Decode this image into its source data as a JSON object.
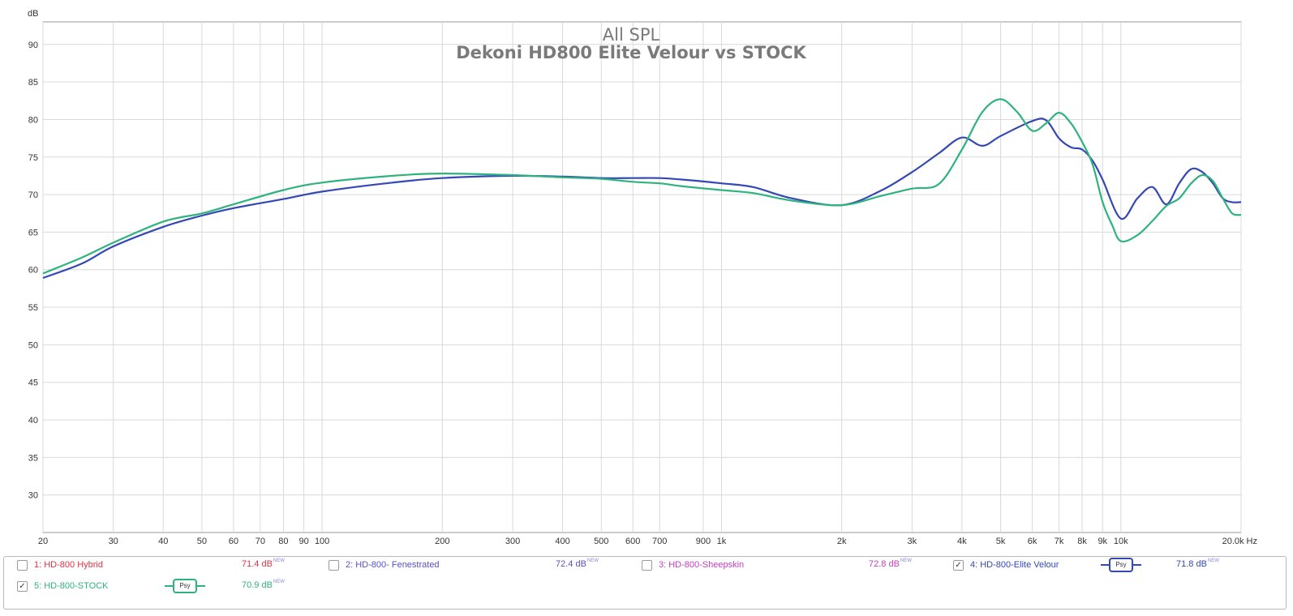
{
  "chart_data": {
    "type": "line",
    "title": "All SPL",
    "subtitle": "Dekoni HD800 Elite Velour vs STOCK",
    "ylabel": "dB",
    "xlabel_unit": "Hz",
    "x_scale": "log",
    "xlim": [
      20,
      20000
    ],
    "ylim": [
      25,
      93
    ],
    "grid": true,
    "x_ticks": [
      {
        "v": 20,
        "t": "20"
      },
      {
        "v": 30,
        "t": "30"
      },
      {
        "v": 40,
        "t": "40"
      },
      {
        "v": 50,
        "t": "50"
      },
      {
        "v": 60,
        "t": "60"
      },
      {
        "v": 70,
        "t": "70"
      },
      {
        "v": 80,
        "t": "80"
      },
      {
        "v": 90,
        "t": "90"
      },
      {
        "v": 100,
        "t": "100"
      },
      {
        "v": 200,
        "t": "200"
      },
      {
        "v": 300,
        "t": "300"
      },
      {
        "v": 400,
        "t": "400"
      },
      {
        "v": 500,
        "t": "500"
      },
      {
        "v": 600,
        "t": "600"
      },
      {
        "v": 700,
        "t": "700"
      },
      {
        "v": 900,
        "t": "900"
      },
      {
        "v": 1000,
        "t": "1k"
      },
      {
        "v": 2000,
        "t": "2k"
      },
      {
        "v": 3000,
        "t": "3k"
      },
      {
        "v": 4000,
        "t": "4k"
      },
      {
        "v": 5000,
        "t": "5k"
      },
      {
        "v": 6000,
        "t": "6k"
      },
      {
        "v": 7000,
        "t": "7k"
      },
      {
        "v": 8000,
        "t": "8k"
      },
      {
        "v": 9000,
        "t": "9k"
      },
      {
        "v": 10000,
        "t": "10k"
      },
      {
        "v": 20000,
        "t": "20.0k Hz"
      }
    ],
    "y_ticks": [
      30,
      35,
      40,
      45,
      50,
      55,
      60,
      65,
      70,
      75,
      80,
      85,
      90
    ],
    "series": [
      {
        "name": "4: HD-800-Elite Velour",
        "color": "#3348b5",
        "x": [
          20,
          25,
          30,
          40,
          50,
          60,
          80,
          100,
          150,
          200,
          300,
          400,
          500,
          600,
          700,
          800,
          1000,
          1200,
          1500,
          2000,
          2500,
          3000,
          3500,
          4000,
          4500,
          5000,
          6000,
          6500,
          7000,
          7500,
          8000,
          8500,
          9000,
          10000,
          11000,
          12000,
          13000,
          14000,
          15000,
          16000,
          17000,
          18000,
          19000,
          20000
        ],
        "y": [
          58.9,
          60.8,
          63.1,
          65.7,
          67.2,
          68.2,
          69.4,
          70.4,
          71.6,
          72.2,
          72.5,
          72.4,
          72.2,
          72.2,
          72.2,
          72.0,
          71.5,
          71.0,
          69.5,
          68.6,
          70.5,
          73.0,
          75.5,
          77.6,
          76.5,
          77.8,
          79.8,
          79.9,
          77.5,
          76.3,
          76.0,
          74.5,
          72.0,
          66.8,
          69.5,
          71.0,
          68.7,
          71.5,
          73.4,
          73.0,
          71.5,
          69.5,
          69.0,
          69.0
        ]
      },
      {
        "name": "5: HD-800-STOCK",
        "color": "#2fb37e",
        "x": [
          20,
          25,
          30,
          40,
          50,
          60,
          80,
          100,
          150,
          200,
          300,
          400,
          500,
          600,
          700,
          800,
          1000,
          1200,
          1500,
          2000,
          2500,
          3000,
          3500,
          4000,
          4500,
          5000,
          5500,
          6000,
          6500,
          7000,
          7500,
          8000,
          8500,
          9000,
          9500,
          10000,
          11000,
          12000,
          13000,
          14000,
          15000,
          16000,
          17000,
          18000,
          19000,
          20000
        ],
        "y": [
          59.5,
          61.6,
          63.6,
          66.4,
          67.5,
          68.7,
          70.6,
          71.6,
          72.5,
          72.8,
          72.6,
          72.3,
          72.1,
          71.7,
          71.5,
          71.1,
          70.6,
          70.2,
          69.2,
          68.6,
          69.8,
          70.8,
          71.4,
          76.0,
          81.0,
          82.7,
          81.0,
          78.5,
          79.5,
          80.9,
          79.5,
          77.0,
          74.0,
          69.0,
          66.0,
          63.8,
          64.6,
          66.5,
          68.5,
          69.5,
          71.5,
          72.6,
          71.8,
          69.5,
          67.5,
          67.3
        ]
      }
    ]
  },
  "legend": {
    "items": [
      {
        "label": "1: HD-800 Hybrid",
        "checked": false,
        "mark": "",
        "value": "71.4 dB",
        "badge": "NEW",
        "color": "#e03248"
      },
      {
        "label": "2: HD-800- Fenestrated",
        "checked": false,
        "mark": "",
        "value": "72.4 dB",
        "badge": "NEW",
        "color": "#5a4fc8"
      },
      {
        "label": "3: HD-800-Sheepskin",
        "checked": false,
        "mark": "",
        "value": "72.8 dB",
        "badge": "NEW",
        "color": "#c43fbf"
      },
      {
        "label": "4: HD-800-Elite Velour",
        "checked": true,
        "mark": "✓",
        "value": "71.8 dB",
        "badge": "NEW",
        "color": "#3348b5",
        "psy": "Psy"
      },
      {
        "label": "5: HD-800-STOCK",
        "checked": true,
        "mark": "✓",
        "value": "70.9 dB",
        "badge": "NEW",
        "color": "#2fb37e",
        "psy": "Psy"
      }
    ]
  }
}
